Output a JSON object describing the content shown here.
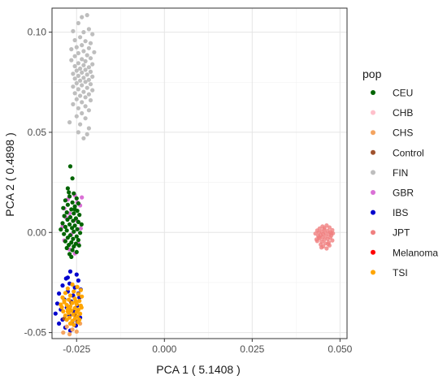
{
  "chart_data": {
    "type": "scatter",
    "xlabel": "PCA 1 ( 5.1408 )",
    "ylabel": "PCA 2 ( 0.4898 )",
    "xlim": [
      -0.032,
      0.052
    ],
    "ylim": [
      -0.053,
      0.112
    ],
    "x_ticks": [
      -0.025,
      0.0,
      0.025,
      0.05
    ],
    "x_tick_labels": [
      "-0.025",
      "0.000",
      "0.025",
      "0.050"
    ],
    "y_ticks": [
      -0.05,
      0.0,
      0.05,
      0.1
    ],
    "y_tick_labels": [
      "-0.05",
      "0.00",
      "0.05",
      "0.10"
    ],
    "grid": true,
    "legend": {
      "title": "pop",
      "placement": "right",
      "entries": [
        {
          "name": "CEU",
          "color": "#006400"
        },
        {
          "name": "CHB",
          "color": "#FFC0CB"
        },
        {
          "name": "CHS",
          "color": "#F4A460"
        },
        {
          "name": "Control",
          "color": "#A0522D"
        },
        {
          "name": "FIN",
          "color": "#BEBEBE"
        },
        {
          "name": "GBR",
          "color": "#DA70D6"
        },
        {
          "name": "IBS",
          "color": "#0000CD"
        },
        {
          "name": "JPT",
          "color": "#F08080"
        },
        {
          "name": "Melanoma",
          "color": "#FF0000"
        },
        {
          "name": "TSI",
          "color": "#FFA500"
        }
      ]
    },
    "series": [
      {
        "name": "FIN",
        "color": "#BEBEBE",
        "points": [
          [
            -0.0235,
            0.1075
          ],
          [
            -0.022,
            0.1085
          ],
          [
            -0.0245,
            0.1045
          ],
          [
            -0.0215,
            0.1015
          ],
          [
            -0.026,
            0.1005
          ],
          [
            -0.023,
            0.1
          ],
          [
            -0.0205,
            0.099
          ],
          [
            -0.024,
            0.0975
          ],
          [
            -0.0255,
            0.096
          ],
          [
            -0.0225,
            0.0955
          ],
          [
            -0.021,
            0.0945
          ],
          [
            -0.0235,
            0.0935
          ],
          [
            -0.025,
            0.0925
          ],
          [
            -0.0215,
            0.092
          ],
          [
            -0.0265,
            0.0915
          ],
          [
            -0.023,
            0.0905
          ],
          [
            -0.02,
            0.09
          ],
          [
            -0.0245,
            0.0895
          ],
          [
            -0.022,
            0.0885
          ],
          [
            -0.0255,
            0.088
          ],
          [
            -0.021,
            0.087
          ],
          [
            -0.0235,
            0.0865
          ],
          [
            -0.0265,
            0.086
          ],
          [
            -0.0225,
            0.0855
          ],
          [
            -0.0245,
            0.0845
          ],
          [
            -0.0205,
            0.084
          ],
          [
            -0.023,
            0.0835
          ],
          [
            -0.0255,
            0.083
          ],
          [
            -0.0215,
            0.0825
          ],
          [
            -0.024,
            0.0818
          ],
          [
            -0.0225,
            0.0812
          ],
          [
            -0.025,
            0.0808
          ],
          [
            -0.021,
            0.0802
          ],
          [
            -0.0235,
            0.0798
          ],
          [
            -0.026,
            0.0792
          ],
          [
            -0.022,
            0.0788
          ],
          [
            -0.0245,
            0.0782
          ],
          [
            -0.0205,
            0.0778
          ],
          [
            -0.023,
            0.0772
          ],
          [
            -0.0255,
            0.0768
          ],
          [
            -0.0215,
            0.0762
          ],
          [
            -0.024,
            0.0758
          ],
          [
            -0.0225,
            0.0752
          ],
          [
            -0.025,
            0.0745
          ],
          [
            -0.021,
            0.074
          ],
          [
            -0.0235,
            0.0735
          ],
          [
            -0.026,
            0.0728
          ],
          [
            -0.022,
            0.0722
          ],
          [
            -0.0245,
            0.0715
          ],
          [
            -0.0205,
            0.071
          ],
          [
            -0.023,
            0.0702
          ],
          [
            -0.0255,
            0.0695
          ],
          [
            -0.0215,
            0.069
          ],
          [
            -0.024,
            0.0682
          ],
          [
            -0.0225,
            0.0675
          ],
          [
            -0.025,
            0.0665
          ],
          [
            -0.021,
            0.066
          ],
          [
            -0.0235,
            0.065
          ],
          [
            -0.026,
            0.064
          ],
          [
            -0.0225,
            0.063
          ],
          [
            -0.0245,
            0.062
          ],
          [
            -0.0215,
            0.061
          ],
          [
            -0.0235,
            0.0595
          ],
          [
            -0.025,
            0.058
          ],
          [
            -0.0225,
            0.057
          ],
          [
            -0.027,
            0.055
          ],
          [
            -0.024,
            0.054
          ],
          [
            -0.0215,
            0.052
          ],
          [
            -0.0245,
            0.05
          ],
          [
            -0.022,
            0.049
          ],
          [
            -0.023,
            0.047
          ]
        ]
      },
      {
        "name": "GBR",
        "color": "#DA70D6",
        "points": [
          [
            -0.0275,
            0.0165
          ],
          [
            -0.0255,
            0.0185
          ],
          [
            -0.0235,
            0.0175
          ],
          [
            -0.0285,
            0.012
          ],
          [
            -0.024,
            0.0135
          ],
          [
            -0.027,
            0.0095
          ],
          [
            -0.025,
            0.006
          ],
          [
            -0.029,
            0.003
          ],
          [
            -0.0238,
            0.002
          ],
          [
            -0.0265,
            -0.001
          ],
          [
            -0.0285,
            -0.004
          ],
          [
            -0.0245,
            -0.0055
          ],
          [
            -0.027,
            -0.0085
          ],
          [
            -0.0255,
            -0.0105
          ],
          [
            -0.028,
            0.0075
          ],
          [
            -0.0248,
            0.015
          ]
        ]
      },
      {
        "name": "CEU",
        "color": "#006400",
        "points": [
          [
            -0.0268,
            0.033
          ],
          [
            -0.0262,
            0.027
          ],
          [
            -0.0275,
            0.022
          ],
          [
            -0.0258,
            0.0195
          ],
          [
            -0.027,
            0.018
          ],
          [
            -0.025,
            0.017
          ],
          [
            -0.0282,
            0.016
          ],
          [
            -0.0262,
            0.015
          ],
          [
            -0.0245,
            0.0145
          ],
          [
            -0.0275,
            0.0138
          ],
          [
            -0.0255,
            0.013
          ],
          [
            -0.0288,
            0.0122
          ],
          [
            -0.0265,
            0.0115
          ],
          [
            -0.0248,
            0.0108
          ],
          [
            -0.0278,
            0.01
          ],
          [
            -0.0258,
            0.0095
          ],
          [
            -0.0242,
            0.0088
          ],
          [
            -0.0285,
            0.0082
          ],
          [
            -0.0268,
            0.0076
          ],
          [
            -0.0252,
            0.007
          ],
          [
            -0.0276,
            0.0064
          ],
          [
            -0.026,
            0.0058
          ],
          [
            -0.0245,
            0.0052
          ],
          [
            -0.029,
            0.0046
          ],
          [
            -0.027,
            0.004
          ],
          [
            -0.0255,
            0.0034
          ],
          [
            -0.0282,
            0.0028
          ],
          [
            -0.0263,
            0.0022
          ],
          [
            -0.0248,
            0.0016
          ],
          [
            -0.0278,
            0.001
          ],
          [
            -0.0258,
            0.0004
          ],
          [
            -0.024,
            -0.0002
          ],
          [
            -0.0286,
            -0.0008
          ],
          [
            -0.0268,
            -0.0014
          ],
          [
            -0.025,
            -0.002
          ],
          [
            -0.0275,
            -0.0026
          ],
          [
            -0.026,
            -0.0032
          ],
          [
            -0.0245,
            -0.0038
          ],
          [
            -0.0282,
            -0.0044
          ],
          [
            -0.0265,
            -0.005
          ],
          [
            -0.0252,
            -0.0056
          ],
          [
            -0.0272,
            -0.0062
          ],
          [
            -0.0258,
            -0.007
          ],
          [
            -0.0278,
            -0.0078
          ],
          [
            -0.0262,
            -0.0088
          ],
          [
            -0.025,
            -0.0098
          ],
          [
            -0.027,
            -0.0108
          ],
          [
            -0.0265,
            -0.0122
          ],
          [
            -0.0295,
            0.0015
          ],
          [
            -0.0236,
            0.004
          ],
          [
            -0.0272,
            0.02
          ],
          [
            -0.0255,
            0.0115
          ],
          [
            -0.0243,
            -0.0065
          ]
        ]
      },
      {
        "name": "IBS",
        "color": "#0000CD",
        "points": [
          [
            -0.0268,
            -0.0195
          ],
          [
            -0.025,
            -0.021
          ],
          [
            -0.028,
            -0.023
          ],
          [
            -0.0245,
            -0.024
          ],
          [
            -0.027,
            -0.0255
          ],
          [
            -0.029,
            -0.0265
          ],
          [
            -0.0255,
            -0.0275
          ],
          [
            -0.0238,
            -0.0285
          ],
          [
            -0.0275,
            -0.0295
          ],
          [
            -0.03,
            -0.0305
          ],
          [
            -0.026,
            -0.0315
          ],
          [
            -0.0242,
            -0.0325
          ],
          [
            -0.0285,
            -0.0335
          ],
          [
            -0.0265,
            -0.0345
          ],
          [
            -0.0305,
            -0.0355
          ],
          [
            -0.0248,
            -0.0365
          ],
          [
            -0.0278,
            -0.0375
          ],
          [
            -0.0295,
            -0.0385
          ],
          [
            -0.0258,
            -0.0395
          ],
          [
            -0.031,
            -0.0405
          ],
          [
            -0.027,
            -0.0415
          ],
          [
            -0.024,
            -0.0425
          ],
          [
            -0.029,
            -0.0435
          ],
          [
            -0.0262,
            -0.0445
          ],
          [
            -0.03,
            -0.0455
          ],
          [
            -0.0252,
            -0.0465
          ],
          [
            -0.0282,
            -0.0475
          ],
          [
            -0.0268,
            -0.049
          ],
          [
            -0.0245,
            -0.0305
          ],
          [
            -0.0275,
            -0.0225
          ]
        ]
      },
      {
        "name": "CHS",
        "color": "#F4A460",
        "points": [
          [
            -0.0278,
            -0.047
          ],
          [
            -0.0262,
            -0.0485
          ],
          [
            -0.0288,
            -0.05
          ],
          [
            -0.025,
            -0.0495
          ],
          [
            -0.027,
            -0.0508
          ],
          [
            -0.024,
            -0.0455
          ]
        ]
      },
      {
        "name": "Control",
        "color": "#A0522D",
        "points": [
          [
            -0.0272,
            -0.0385
          ],
          [
            -0.0255,
            -0.041
          ],
          [
            -0.0285,
            -0.043
          ],
          [
            -0.0265,
            -0.035
          ],
          [
            -0.0248,
            -0.0445
          ]
        ]
      },
      {
        "name": "TSI",
        "color": "#FFA500",
        "points": [
          [
            -0.0262,
            -0.026
          ],
          [
            -0.0248,
            -0.0272
          ],
          [
            -0.0275,
            -0.028
          ],
          [
            -0.0238,
            -0.0288
          ],
          [
            -0.0258,
            -0.0295
          ],
          [
            -0.0282,
            -0.0302
          ],
          [
            -0.0245,
            -0.0308
          ],
          [
            -0.0268,
            -0.0315
          ],
          [
            -0.0235,
            -0.032
          ],
          [
            -0.029,
            -0.0325
          ],
          [
            -0.0255,
            -0.033
          ],
          [
            -0.0272,
            -0.0336
          ],
          [
            -0.0242,
            -0.0342
          ],
          [
            -0.0285,
            -0.0348
          ],
          [
            -0.0262,
            -0.0352
          ],
          [
            -0.025,
            -0.0358
          ],
          [
            -0.0278,
            -0.0362
          ],
          [
            -0.0238,
            -0.0366
          ],
          [
            -0.0268,
            -0.037
          ],
          [
            -0.0292,
            -0.0374
          ],
          [
            -0.0255,
            -0.0378
          ],
          [
            -0.0275,
            -0.0382
          ],
          [
            -0.0245,
            -0.0386
          ],
          [
            -0.0265,
            -0.039
          ],
          [
            -0.0288,
            -0.0394
          ],
          [
            -0.025,
            -0.0398
          ],
          [
            -0.0272,
            -0.0402
          ],
          [
            -0.024,
            -0.0406
          ],
          [
            -0.026,
            -0.041
          ],
          [
            -0.0282,
            -0.0415
          ],
          [
            -0.0248,
            -0.042
          ],
          [
            -0.027,
            -0.0425
          ],
          [
            -0.0255,
            -0.043
          ],
          [
            -0.0278,
            -0.0436
          ],
          [
            -0.0262,
            -0.0442
          ],
          [
            -0.0245,
            -0.0448
          ],
          [
            -0.0268,
            -0.0455
          ],
          [
            -0.0258,
            -0.0462
          ],
          [
            -0.0285,
            -0.034
          ],
          [
            -0.0236,
            -0.0375
          ],
          [
            -0.0295,
            -0.036
          ],
          [
            -0.0252,
            -0.0345
          ],
          [
            -0.0275,
            -0.0395
          ],
          [
            -0.0242,
            -0.0435
          ]
        ]
      },
      {
        "name": "JPT",
        "color": "#F08080",
        "points": [
          [
            0.045,
            0.003
          ],
          [
            0.0462,
            0.0035
          ],
          [
            0.047,
            0.0025
          ],
          [
            0.0442,
            0.002
          ],
          [
            0.0455,
            0.0015
          ],
          [
            0.0478,
            0.0012
          ],
          [
            0.0435,
            0.001
          ],
          [
            0.0465,
            0.0008
          ],
          [
            0.0448,
            0.0005
          ],
          [
            0.0472,
            0.0002
          ],
          [
            0.044,
            0.0
          ],
          [
            0.0458,
            -0.0002
          ],
          [
            0.048,
            -0.0004
          ],
          [
            0.043,
            -0.0006
          ],
          [
            0.0452,
            -0.0008
          ],
          [
            0.0468,
            -0.001
          ],
          [
            0.0445,
            -0.0013
          ],
          [
            0.0475,
            -0.0015
          ],
          [
            0.0438,
            -0.0018
          ],
          [
            0.046,
            -0.002
          ],
          [
            0.045,
            -0.0023
          ],
          [
            0.0472,
            -0.0026
          ],
          [
            0.0442,
            -0.003
          ],
          [
            0.0465,
            -0.0033
          ],
          [
            0.0455,
            -0.0036
          ],
          [
            0.0478,
            -0.004
          ],
          [
            0.0435,
            -0.0043
          ],
          [
            0.0448,
            -0.0046
          ],
          [
            0.0468,
            -0.005
          ],
          [
            0.0458,
            -0.0055
          ],
          [
            0.0445,
            -0.006
          ],
          [
            0.047,
            -0.0065
          ],
          [
            0.0452,
            -0.007
          ],
          [
            0.0462,
            -0.008
          ],
          [
            0.044,
            -0.0025
          ],
          [
            0.0475,
            -0.0005
          ],
          [
            0.0433,
            -0.0035
          ],
          [
            0.0456,
            0.0022
          ],
          [
            0.0466,
            -0.0058
          ],
          [
            0.0447,
            -0.0075
          ]
        ]
      }
    ]
  }
}
